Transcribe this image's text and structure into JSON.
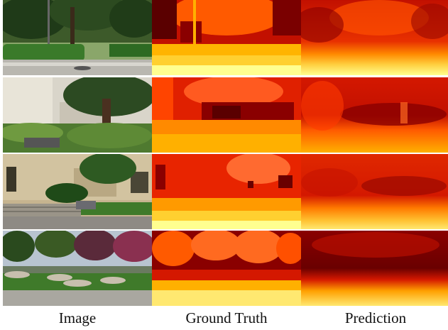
{
  "figure": {
    "columns": [
      "Image",
      "Ground Truth",
      "Prediction"
    ],
    "rows": [
      {
        "scene": "street with hedge and trees"
      },
      {
        "scene": "building with tree and ferns"
      },
      {
        "scene": "building with stairs and bench"
      },
      {
        "scene": "plaza with flowering trees"
      }
    ],
    "colormap": [
      "#5a0000",
      "#c21000",
      "#ff4a00",
      "#ff9a00",
      "#ffe040",
      "#ffffc8"
    ]
  }
}
